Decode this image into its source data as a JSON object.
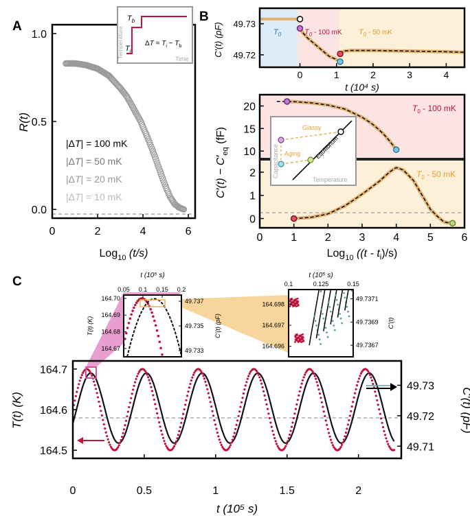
{
  "panel_labels": {
    "a": "A",
    "b": "B",
    "c": "C"
  },
  "colors": {
    "red": "#c0143c",
    "black": "#111111",
    "teal": "#5aa0a8",
    "orange_line": "#e0b070",
    "orange_bg": "#fdf0d8",
    "pink_bg": "#fbe4e2",
    "blue_bg": "#dcecf8",
    "gray_line": "#999999",
    "sym_gray": "#9a9a9a",
    "pink_wedge": "#d54fa5",
    "orange_wedge": "#f2b34a"
  },
  "panelA": {
    "ylabel": "R(t)",
    "xlabel_main": "Log",
    "xlabel_sub": "10",
    "xlabel_tail": " (t/s)",
    "xticks": [
      "0",
      "2",
      "4",
      "6"
    ],
    "yticks": [
      "0.0",
      "0.5",
      "1.0"
    ],
    "legend": [
      {
        "prefix": "|Δ",
        "T": "T",
        "suffix": "| = 100 mK"
      },
      {
        "prefix": "|Δ",
        "T": "T",
        "suffix": "| = 50 mK"
      },
      {
        "prefix": "|Δ",
        "T": "T",
        "suffix": "| = 20 mK"
      },
      {
        "prefix": "|Δ",
        "T": "T",
        "suffix": "| = 10 mK"
      }
    ],
    "inset": {
      "ylabel": "Temperature",
      "xlabel": "Time",
      "tb": "T",
      "tb_sub": "b",
      "ti": "T",
      "ti_sub": "i",
      "eq_a": "Δ",
      "eq_b": "T",
      "eq_c": " = ",
      "eq_d": "T",
      "eq_e": "i",
      "eq_f": " − ",
      "eq_g": "T",
      "eq_h": "b"
    }
  },
  "panelB_top": {
    "ylabel": "C′(t) (pF)",
    "xlabel": "t (10⁴ s)",
    "yticks": [
      "49.72",
      "49.73"
    ],
    "xticks": [
      "0",
      "1",
      "2",
      "3",
      "4"
    ],
    "region_labels": {
      "t0": "T",
      "t0_sub": "0",
      "t100": " - 100 mK",
      "t50": " - 50 mK"
    }
  },
  "panelB_bottom": {
    "ylabel_a": "C′(t) − C′",
    "ylabel_sub": "eq",
    "ylabel_unit": " (fF)",
    "xlabel_main": "Log",
    "xlabel_sub": "10",
    "xlabel_tail": " ((t - t",
    "xlabel_tsub": "i",
    "xlabel_end": ")/s)",
    "yticks_upper": [
      "10",
      "15",
      "20"
    ],
    "yticks_lower": [
      "0",
      "1",
      "2"
    ],
    "xticks": [
      "0",
      "1",
      "2",
      "3",
      "4",
      "5",
      "6"
    ],
    "label100": " - 100 mK",
    "label50": " - 50 mK",
    "inset": {
      "ylabel": "Capacitance",
      "xlabel": "Temperature",
      "glassy": "Glassy",
      "aging": "Aging",
      "equilibrium": "Equilibrium"
    }
  },
  "panelC": {
    "ylabel_left": "T(t) (K)",
    "ylabel_right": "C′(t) (pF)",
    "xlabel": "t (10⁵ s)",
    "yticks_left": [
      "164.5",
      "164.6",
      "164.7"
    ],
    "yticks_right": [
      "49.71",
      "49.72",
      "49.73"
    ],
    "xticks": [
      "0",
      "0.5",
      "1",
      "1.5",
      "2"
    ],
    "inset1": {
      "top_label": "t (10⁵ s)",
      "xticks": [
        "0.05",
        "0.1",
        "0.15",
        "0.2"
      ],
      "yticks_left": [
        "164.67",
        "164.68",
        "164.69",
        "164.70"
      ],
      "yticks_right": [
        "49.733",
        "49.735",
        "49.737"
      ],
      "ylabel_left": "T(t) (K)",
      "ylabel_right": "C′(t) (pF)"
    },
    "inset2": {
      "top_label": "t (10⁵ s)",
      "xticks": [
        "0.1",
        "0.125",
        "0.15"
      ],
      "yticks_left": [
        "164.696",
        "164.697",
        "164.698"
      ],
      "yticks_right": [
        "49.7367",
        "49.7369",
        "49.7371"
      ],
      "ylabel_right": "C′(t)"
    }
  },
  "chart_data": [
    {
      "type": "scatter",
      "panel": "A",
      "xlabel": "Log10 (t/s)",
      "ylabel": "R(t)",
      "xlim": [
        0,
        6.3
      ],
      "ylim": [
        -0.05,
        1.05
      ],
      "series": [
        {
          "name": "|ΔT| = 100 mK",
          "x": [
            0.6,
            1.0,
            1.5,
            2.0,
            2.5,
            3.0,
            3.3,
            3.6,
            3.9,
            4.2,
            4.5,
            4.8,
            5.0,
            5.2,
            5.4,
            5.6,
            5.8
          ],
          "y": [
            0.83,
            0.83,
            0.82,
            0.8,
            0.76,
            0.69,
            0.64,
            0.57,
            0.5,
            0.41,
            0.31,
            0.2,
            0.13,
            0.07,
            0.03,
            0.01,
            0.0
          ]
        }
      ],
      "reference_line_y": 0.0,
      "grid": false
    },
    {
      "type": "line",
      "panel": "B-top",
      "xlabel": "t (10^4 s)",
      "ylabel": "C'(t) (pF)",
      "xlim": [
        -1.1,
        4.5
      ],
      "ylim": [
        49.716,
        49.735
      ],
      "series": [
        {
          "name": "T0 equilibrium",
          "x": [
            -1.1,
            -0.5,
            0.0
          ],
          "y": [
            49.7315,
            49.7315,
            49.7315
          ]
        },
        {
          "name": "T0 - 100 mK",
          "x": [
            0.0,
            0.05,
            0.2,
            0.4,
            0.6,
            0.8,
            1.0,
            1.1
          ],
          "y": [
            49.7285,
            49.7275,
            49.7255,
            49.7235,
            49.7215,
            49.7195,
            49.7185,
            49.7178
          ]
        },
        {
          "name": "T0 - 50 mK",
          "x": [
            1.1,
            1.2,
            1.4,
            1.7,
            2.0,
            2.5,
            3.0,
            3.5,
            4.0,
            4.5
          ],
          "y": [
            49.7203,
            49.7212,
            49.7214,
            49.7214,
            49.7214,
            49.7213,
            49.7212,
            49.7211,
            49.721,
            49.7208
          ]
        }
      ],
      "markers": [
        {
          "x": 0.0,
          "y": 49.7315,
          "color": "black"
        },
        {
          "x": 0.0,
          "y": 49.7285,
          "color": "purple"
        },
        {
          "x": 1.1,
          "y": 49.7203,
          "color": "red"
        },
        {
          "x": 1.1,
          "y": 49.7178,
          "color": "teal"
        }
      ]
    },
    {
      "type": "line",
      "panel": "B-bottom",
      "xlabel": "Log10 ((t - ti)/s)",
      "ylabel": "C'(t) - C'eq (fF)",
      "xlim": [
        0,
        6
      ],
      "series": [
        {
          "name": "T0 - 100 mK",
          "x": [
            0.8,
            1.0,
            1.5,
            2.0,
            2.5,
            3.0,
            3.3,
            3.6,
            3.8,
            4.0
          ],
          "y": [
            21.0,
            20.95,
            20.7,
            20.2,
            19.3,
            17.5,
            16.0,
            14.0,
            12.3,
            10.3
          ]
        },
        {
          "name": "T0 - 50 mK",
          "x": [
            1.0,
            1.5,
            2.0,
            2.5,
            3.0,
            3.5,
            3.8,
            4.0,
            4.2,
            4.5,
            4.8,
            5.0,
            5.2,
            5.4,
            5.6
          ],
          "y": [
            0.0,
            0.05,
            0.2,
            0.55,
            1.05,
            1.6,
            2.0,
            2.2,
            2.1,
            1.65,
            0.9,
            0.4,
            0.1,
            -0.15,
            -0.2
          ]
        }
      ],
      "ylim_upper": [
        8.5,
        22.5
      ],
      "ylim_lower": [
        -0.4,
        2.5
      ]
    },
    {
      "type": "line",
      "panel": "C",
      "xlabel": "t (10^5 s)",
      "ylabel": "T(t) (K)",
      "ylabel_right": "C'(t) (pF)",
      "xlim": [
        0,
        2.3
      ],
      "ylim": [
        164.48,
        164.72
      ],
      "ylim_right": [
        49.706,
        49.738
      ],
      "series": [
        {
          "name": "T(t)",
          "amplitude": 0.1,
          "mean": 164.6,
          "period": 0.39,
          "x_start": 0.0,
          "x_end": 2.25
        },
        {
          "name": "C'(t)",
          "amplitude": 0.0115,
          "mean": 49.7225,
          "period": 0.39,
          "phase_lag": 0.028,
          "x_start": 0.0,
          "x_end": 2.25
        }
      ],
      "reference_line_y": 164.6
    }
  ]
}
